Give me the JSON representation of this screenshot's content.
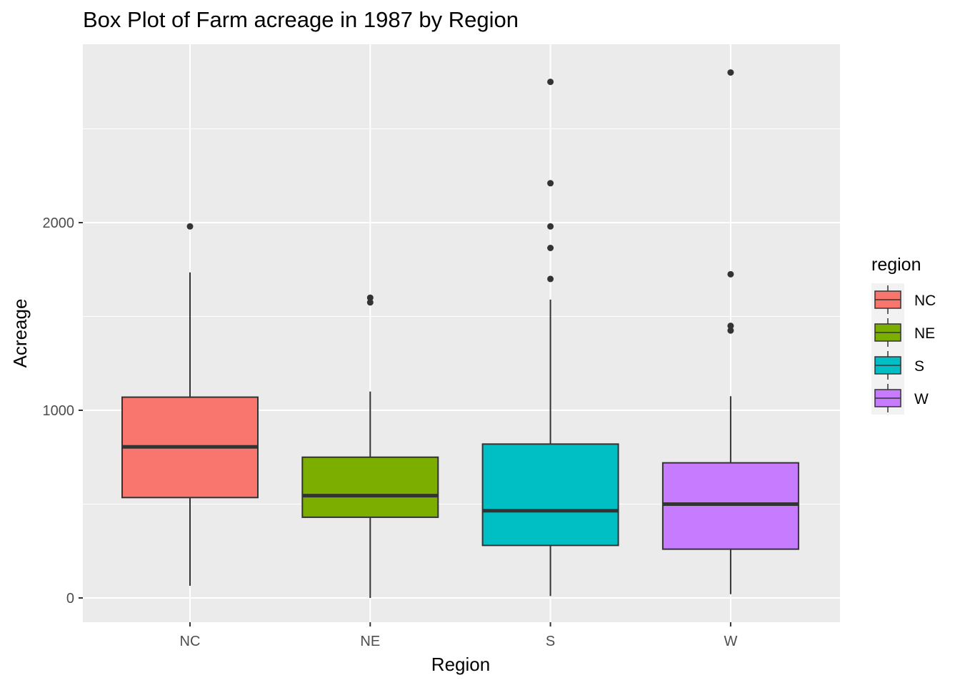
{
  "chart_data": {
    "type": "box",
    "title": "Box Plot of Farm acreage in 1987 by Region",
    "xlabel": "Region",
    "ylabel": "Acreage",
    "categories": [
      "NC",
      "NE",
      "S",
      "W"
    ],
    "ylim": [
      -130,
      2950
    ],
    "yticks": [
      0,
      1000,
      2000
    ],
    "grid": true,
    "legend": {
      "title": "region",
      "position": "right",
      "entries": [
        "NC",
        "NE",
        "S",
        "W"
      ]
    },
    "colors": {
      "NC": "#F8766D",
      "NE": "#7CAE00",
      "S": "#00BFC4",
      "W": "#C77CFF"
    },
    "boxes": [
      {
        "category": "NC",
        "whisker_low": 65,
        "q1": 535,
        "median": 805,
        "q3": 1070,
        "whisker_high": 1735,
        "outliers": [
          1980
        ]
      },
      {
        "category": "NE",
        "whisker_low": 0,
        "q1": 430,
        "median": 545,
        "q3": 750,
        "whisker_high": 1100,
        "outliers": [
          1575,
          1600
        ]
      },
      {
        "category": "S",
        "whisker_low": 10,
        "q1": 280,
        "median": 465,
        "q3": 820,
        "whisker_high": 1590,
        "outliers": [
          1700,
          1865,
          1980,
          2210,
          2750
        ]
      },
      {
        "category": "W",
        "whisker_low": 20,
        "q1": 260,
        "median": 500,
        "q3": 720,
        "whisker_high": 1075,
        "outliers": [
          1425,
          1450,
          1725,
          2800
        ]
      }
    ]
  }
}
